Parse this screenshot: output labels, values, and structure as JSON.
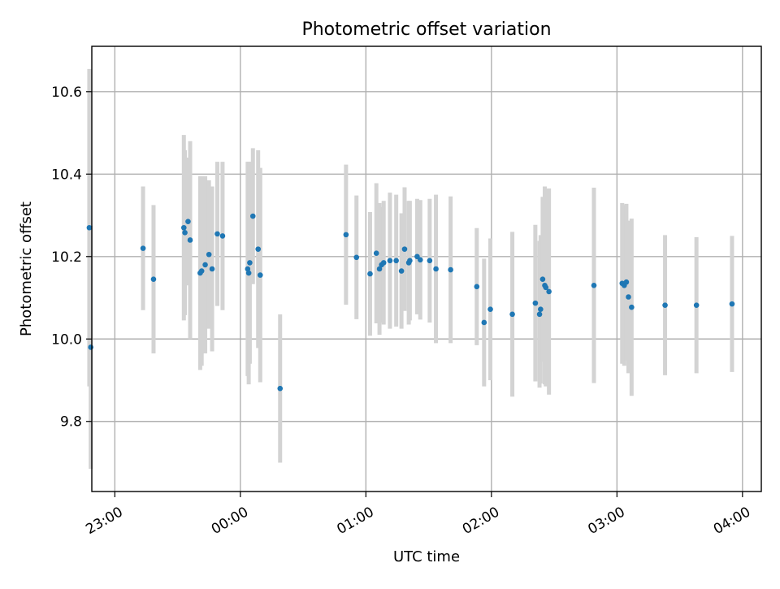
{
  "chart_data": {
    "type": "scatter",
    "title": "Photometric offset variation",
    "xlabel": "UTC time",
    "ylabel": "Photometric offset",
    "x_axis_format": "time",
    "xlim": [
      "22:49",
      "04:09"
    ],
    "ylim": [
      9.63,
      10.71
    ],
    "xticks": [
      "23:00",
      "00:00",
      "01:00",
      "02:00",
      "03:00",
      "04:00"
    ],
    "yticks": [
      9.8,
      10.0,
      10.2,
      10.4,
      10.6
    ],
    "ytick_labels": [
      "9.8",
      "10.0",
      "10.2",
      "10.4",
      "10.6"
    ],
    "grid": true,
    "colors": {
      "marker": "#1f77b4",
      "errorbar": "#d3d3d3",
      "grid": "#b0b0b0"
    },
    "points": [
      {
        "time": "22:47.8",
        "y": 10.27,
        "err": 0.385
      },
      {
        "time": "22:48.5",
        "y": 9.98,
        "err": 0.295
      },
      {
        "time": "23:13.5",
        "y": 10.22,
        "err": 0.15
      },
      {
        "time": "23:18.5",
        "y": 10.145,
        "err": 0.18
      },
      {
        "time": "23:33.0",
        "y": 10.27,
        "err": 0.225
      },
      {
        "time": "23:33.5",
        "y": 10.258,
        "err": 0.2
      },
      {
        "time": "23:35.0",
        "y": 10.285,
        "err": 0.155
      },
      {
        "time": "23:36.0",
        "y": 10.24,
        "err": 0.24
      },
      {
        "time": "23:40.8",
        "y": 10.16,
        "err": 0.235
      },
      {
        "time": "23:41.5",
        "y": 10.165,
        "err": 0.23
      },
      {
        "time": "23:43.2",
        "y": 10.18,
        "err": 0.215
      },
      {
        "time": "23:45.0",
        "y": 10.205,
        "err": 0.18
      },
      {
        "time": "23:46.5",
        "y": 10.17,
        "err": 0.2
      },
      {
        "time": "23:49.0",
        "y": 10.255,
        "err": 0.175
      },
      {
        "time": "23:51.5",
        "y": 10.25,
        "err": 0.18
      },
      {
        "time": "00:03.5",
        "y": 10.17,
        "err": 0.26
      },
      {
        "time": "00:04.0",
        "y": 10.16,
        "err": 0.27
      },
      {
        "time": "00:04.5",
        "y": 10.185,
        "err": 0.245
      },
      {
        "time": "00:06.0",
        "y": 10.298,
        "err": 0.165
      },
      {
        "time": "00:08.5",
        "y": 10.218,
        "err": 0.24
      },
      {
        "time": "00:09.5",
        "y": 10.155,
        "err": 0.26
      },
      {
        "time": "00:19.0",
        "y": 9.88,
        "err": 0.18
      },
      {
        "time": "00:50.5",
        "y": 10.253,
        "err": 0.17
      },
      {
        "time": "00:55.5",
        "y": 10.198,
        "err": 0.15
      },
      {
        "time": "01:02.0",
        "y": 10.158,
        "err": 0.15
      },
      {
        "time": "01:05.0",
        "y": 10.208,
        "err": 0.17
      },
      {
        "time": "01:06.5",
        "y": 10.17,
        "err": 0.16
      },
      {
        "time": "01:07.5",
        "y": 10.18,
        "err": 0.14
      },
      {
        "time": "01:08.5",
        "y": 10.185,
        "err": 0.15
      },
      {
        "time": "01:11.5",
        "y": 10.19,
        "err": 0.165
      },
      {
        "time": "01:14.5",
        "y": 10.19,
        "err": 0.16
      },
      {
        "time": "01:17.0",
        "y": 10.165,
        "err": 0.14
      },
      {
        "time": "01:18.5",
        "y": 10.218,
        "err": 0.15
      },
      {
        "time": "01:20.5",
        "y": 10.185,
        "err": 0.15
      },
      {
        "time": "01:21.0",
        "y": 10.19,
        "err": 0.145
      },
      {
        "time": "01:24.5",
        "y": 10.2,
        "err": 0.14
      },
      {
        "time": "01:26.0",
        "y": 10.192,
        "err": 0.145
      },
      {
        "time": "01:30.5",
        "y": 10.19,
        "err": 0.15
      },
      {
        "time": "01:33.5",
        "y": 10.17,
        "err": 0.18
      },
      {
        "time": "01:40.5",
        "y": 10.168,
        "err": 0.178
      },
      {
        "time": "01:53.0",
        "y": 10.127,
        "err": 0.142
      },
      {
        "time": "01:56.5",
        "y": 10.04,
        "err": 0.155
      },
      {
        "time": "01:59.5",
        "y": 10.072,
        "err": 0.172
      },
      {
        "time": "02:10.0",
        "y": 10.06,
        "err": 0.2
      },
      {
        "time": "02:21.0",
        "y": 10.087,
        "err": 0.19
      },
      {
        "time": "02:23.0",
        "y": 10.06,
        "err": 0.178
      },
      {
        "time": "02:23.5",
        "y": 10.072,
        "err": 0.18
      },
      {
        "time": "02:24.5",
        "y": 10.145,
        "err": 0.2
      },
      {
        "time": "02:25.5",
        "y": 10.13,
        "err": 0.24
      },
      {
        "time": "02:26.0",
        "y": 10.125,
        "err": 0.24
      },
      {
        "time": "02:27.5",
        "y": 10.115,
        "err": 0.25
      },
      {
        "time": "02:49.0",
        "y": 10.13,
        "err": 0.237
      },
      {
        "time": "03:02.5",
        "y": 10.135,
        "err": 0.195
      },
      {
        "time": "03:03.5",
        "y": 10.13,
        "err": 0.195
      },
      {
        "time": "03:04.5",
        "y": 10.138,
        "err": 0.19
      },
      {
        "time": "03:05.5",
        "y": 10.102,
        "err": 0.185
      },
      {
        "time": "03:07.0",
        "y": 10.077,
        "err": 0.215
      },
      {
        "time": "03:23.0",
        "y": 10.082,
        "err": 0.17
      },
      {
        "time": "03:38.0",
        "y": 10.082,
        "err": 0.165
      },
      {
        "time": "03:55.0",
        "y": 10.085,
        "err": 0.165
      }
    ]
  }
}
